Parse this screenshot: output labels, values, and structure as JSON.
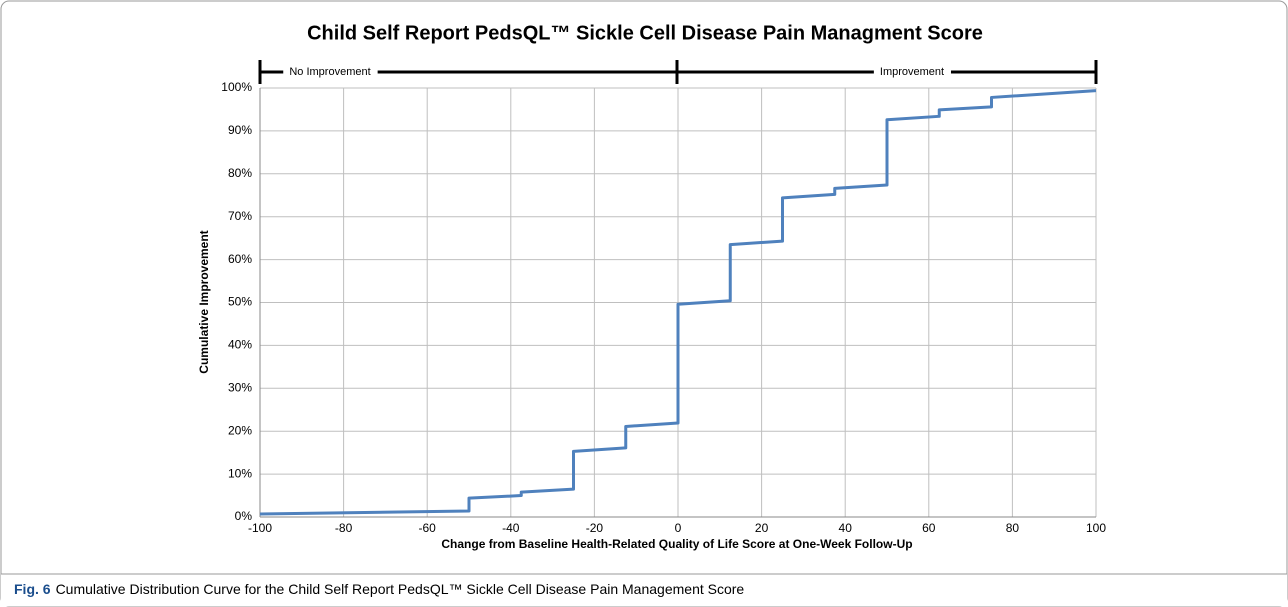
{
  "chart_data": {
    "type": "line",
    "title": "Child Self Report PedsQL™ Sickle Cell Disease Pain Managment Score",
    "x_label": "Change from Baseline Health-Related Quality of Life Score at One-Week Follow-Up",
    "y_label": "Cumulative Improvement",
    "annotations": [
      "No Improvement",
      "Improvement"
    ],
    "caption": {
      "label": "Fig. 6",
      "text": "Cumulative Distribution Curve for the Child Self Report PedsQL™ Sickle Cell Disease Pain Management Score"
    },
    "x": [
      -100,
      -50,
      -50,
      -37.5,
      -37.5,
      -25,
      -25,
      -12.5,
      -12.5,
      0,
      0,
      12.5,
      12.5,
      25,
      25,
      37.5,
      37.5,
      50,
      50,
      62.5,
      62.5,
      75,
      75,
      100
    ],
    "series": [
      {
        "name": "Cumulative Improvement",
        "color": "#4f81bd",
        "values": [
          0.7,
          1.4,
          4.4,
          5.0,
          5.8,
          6.5,
          15.3,
          16.1,
          21.1,
          21.9,
          49.6,
          50.4,
          63.5,
          64.3,
          74.4,
          75.2,
          76.6,
          77.4,
          92.6,
          93.4,
          94.9,
          95.6,
          97.8,
          99.4
        ]
      }
    ],
    "xlim": [
      -100,
      100
    ],
    "xticks": [
      -100,
      -80,
      -60,
      -40,
      -20,
      0,
      20,
      40,
      60,
      80,
      100
    ],
    "ylim": [
      0,
      100
    ],
    "yticks": [
      {
        "value": 0,
        "label": "0%"
      },
      {
        "value": 10,
        "label": "10%"
      },
      {
        "value": 20,
        "label": "20%"
      },
      {
        "value": 30,
        "label": "30%"
      },
      {
        "value": 40,
        "label": "40%"
      },
      {
        "value": 50,
        "label": "50%"
      },
      {
        "value": 60,
        "label": "60%"
      },
      {
        "value": 70,
        "label": "70%"
      },
      {
        "value": 80,
        "label": "80%"
      },
      {
        "value": 90,
        "label": "90%"
      },
      {
        "value": 100,
        "label": "100%"
      }
    ],
    "grid": true
  }
}
